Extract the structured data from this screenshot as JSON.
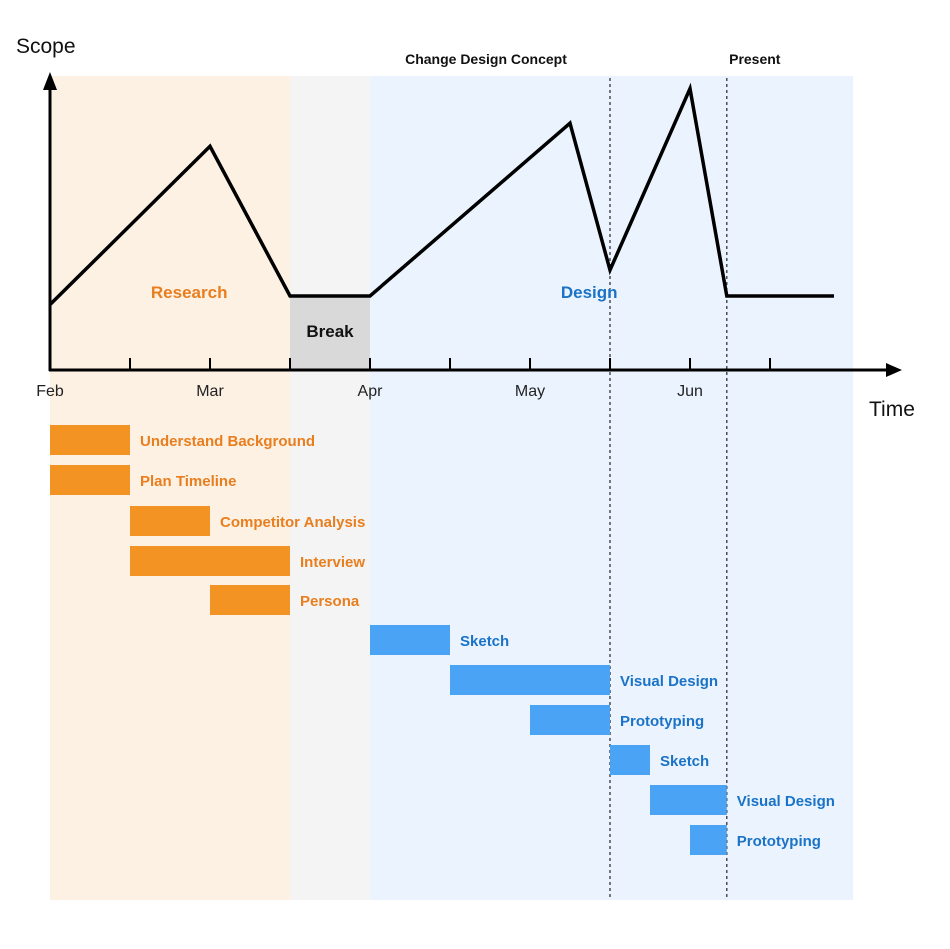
{
  "chart_data": {
    "type": "line",
    "xlabel": "Time",
    "ylabel": "Scope",
    "x_tick_labels": [
      "Feb",
      "Mar",
      "Apr",
      "May",
      "Jun"
    ],
    "x_range_months": [
      0,
      5
    ],
    "colors": {
      "research": "#F39324",
      "design": "#4AA3F5",
      "research_text": "#E87E1E",
      "design_text": "#1A73C7",
      "research_bg": "#FDF1E4",
      "break_bg": "#F4F4F4",
      "design_bg": "#EBF4FE",
      "break_box": "#D9D9D9",
      "line": "#000000"
    },
    "phases": [
      {
        "label": "Research",
        "start": 0,
        "end": 1.5,
        "kind": "research"
      },
      {
        "label": "",
        "start": 1.5,
        "end": 2,
        "kind": "break"
      },
      {
        "label": "Design",
        "start": 2,
        "end": 5,
        "kind": "design"
      }
    ],
    "break_label": "Break",
    "markers": [
      {
        "label": "Change Design Concept",
        "x": 3.5
      },
      {
        "label": "Present",
        "x": 4.23
      }
    ],
    "scope_line": {
      "x": [
        0,
        1,
        1.5,
        2,
        3.25,
        3.5,
        4,
        4.23,
        4.9
      ],
      "y": [
        2.2,
        7.7,
        2.5,
        2.5,
        8.5,
        3.4,
        9.7,
        2.5,
        2.5
      ],
      "ylim": [
        0,
        10
      ]
    },
    "tasks": [
      {
        "label": "Understand Background",
        "start": 0,
        "end": 0.5,
        "phase": "research"
      },
      {
        "label": "Plan Timeline",
        "start": 0,
        "end": 0.5,
        "phase": "research"
      },
      {
        "label": "Competitor Analysis",
        "start": 0.5,
        "end": 1,
        "phase": "research"
      },
      {
        "label": "Interview",
        "start": 0.5,
        "end": 1.5,
        "phase": "research"
      },
      {
        "label": "Persona",
        "start": 1,
        "end": 1.5,
        "phase": "research"
      },
      {
        "label": "Sketch",
        "start": 2,
        "end": 2.5,
        "phase": "design"
      },
      {
        "label": "Visual Design",
        "start": 2.5,
        "end": 3.5,
        "phase": "design"
      },
      {
        "label": "Prototyping",
        "start": 3,
        "end": 3.5,
        "phase": "design"
      },
      {
        "label": "Sketch",
        "start": 3.5,
        "end": 3.75,
        "phase": "design"
      },
      {
        "label": "Visual Design",
        "start": 3.75,
        "end": 4.23,
        "phase": "design"
      },
      {
        "label": "Prototyping",
        "start": 4,
        "end": 4.23,
        "phase": "design"
      }
    ]
  }
}
